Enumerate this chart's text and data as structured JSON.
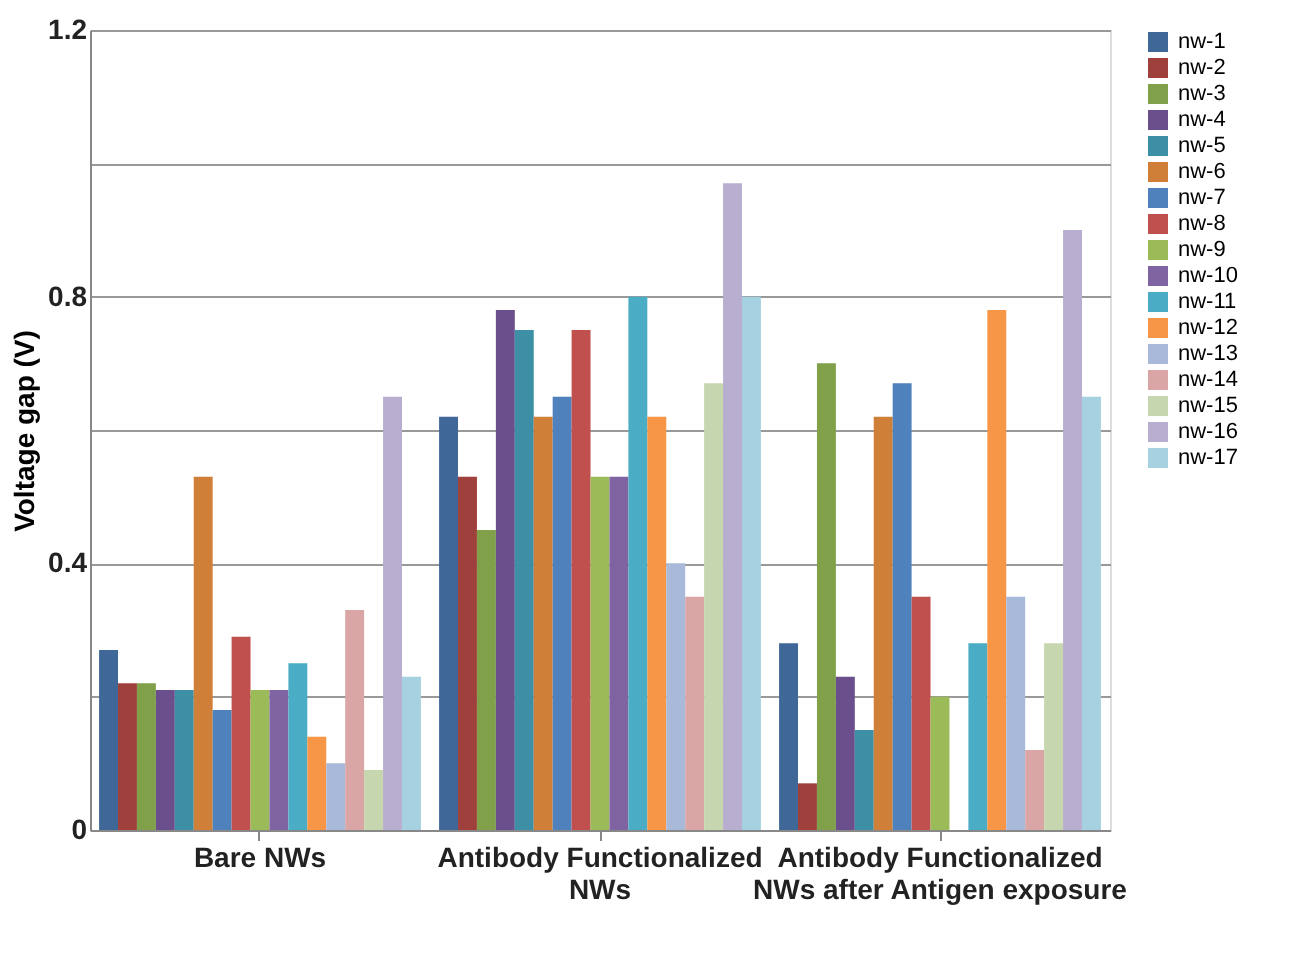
{
  "chart_data": {
    "type": "bar",
    "ylabel": "Voltage gap (V)",
    "categories": [
      "Bare NWs",
      "Antibody Functionalized NWs",
      "Antibody Functionalized NWs after Antigen exposure"
    ],
    "ylim": [
      0,
      1.2
    ],
    "yticks": [
      0,
      {
        "value": 0.2,
        "label": null
      },
      0.4,
      {
        "value": 0.6,
        "label": null
      },
      0.8,
      {
        "value": 1.0,
        "label": null
      },
      1.2
    ],
    "grid": "y",
    "legend": "right",
    "series": [
      {
        "name": "nw-1",
        "color": "#3f6797",
        "values": [
          0.27,
          0.62,
          0.28
        ]
      },
      {
        "name": "nw-2",
        "color": "#a0403d",
        "values": [
          0.22,
          0.53,
          0.07
        ]
      },
      {
        "name": "nw-3",
        "color": "#80a04a",
        "values": [
          0.22,
          0.45,
          0.7
        ]
      },
      {
        "name": "nw-4",
        "color": "#6a4f8c",
        "values": [
          0.21,
          0.78,
          0.23
        ]
      },
      {
        "name": "nw-5",
        "color": "#3c8fa5",
        "values": [
          0.21,
          0.75,
          0.15
        ]
      },
      {
        "name": "nw-6",
        "color": "#d07f38",
        "values": [
          0.53,
          0.62,
          0.62
        ]
      },
      {
        "name": "nw-7",
        "color": "#4f81bd",
        "values": [
          0.18,
          0.65,
          0.67
        ]
      },
      {
        "name": "nw-8",
        "color": "#c0504d",
        "values": [
          0.29,
          0.75,
          0.35
        ]
      },
      {
        "name": "nw-9",
        "color": "#9bbb59",
        "values": [
          0.21,
          0.53,
          0.2
        ]
      },
      {
        "name": "nw-10",
        "color": "#8064a2",
        "values": [
          0.21,
          0.53,
          null
        ]
      },
      {
        "name": "nw-11",
        "color": "#4bacc6",
        "values": [
          0.25,
          0.8,
          0.28
        ]
      },
      {
        "name": "nw-12",
        "color": "#f79646",
        "values": [
          0.14,
          0.62,
          0.78
        ]
      },
      {
        "name": "nw-13",
        "color": "#a9b9d9",
        "values": [
          0.1,
          0.4,
          0.35
        ]
      },
      {
        "name": "nw-14",
        "color": "#d9a5a5",
        "values": [
          0.33,
          0.35,
          0.12
        ]
      },
      {
        "name": "nw-15",
        "color": "#c6d6ae",
        "values": [
          0.09,
          0.67,
          0.28
        ]
      },
      {
        "name": "nw-16",
        "color": "#b8aed0",
        "values": [
          0.65,
          0.97,
          0.9
        ]
      },
      {
        "name": "nw-17",
        "color": "#a5d1e0",
        "values": [
          0.23,
          0.8,
          0.65
        ]
      }
    ]
  }
}
